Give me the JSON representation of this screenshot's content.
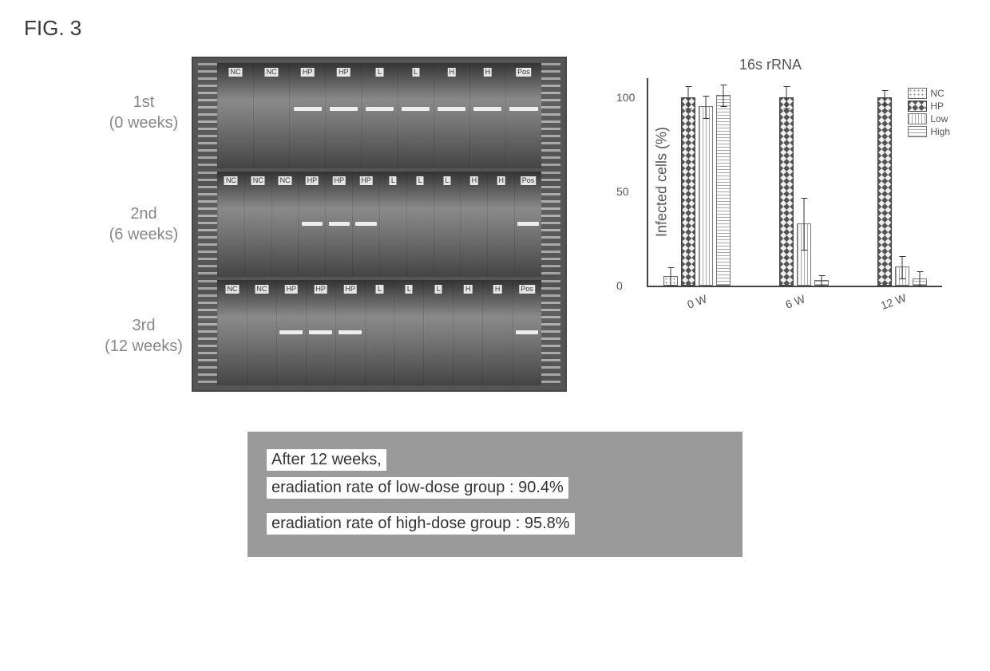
{
  "figure_label": "FIG. 3",
  "gel": {
    "rows": [
      {
        "ordinal": "1st",
        "weeks": "(0 weeks)",
        "lane_tags": [
          "NC",
          "NC",
          "HP",
          "HP",
          "L",
          "L",
          "H",
          "H",
          "Pos"
        ],
        "band_y": 42,
        "bands_on": [
          2,
          3,
          4,
          5,
          6,
          7,
          8
        ]
      },
      {
        "ordinal": "2nd",
        "weeks": "(6 weeks)",
        "lane_tags": [
          "NC",
          "NC",
          "NC",
          "HP",
          "HP",
          "HP",
          "L",
          "L",
          "L",
          "H",
          "H",
          "Pos"
        ],
        "band_y": 48,
        "bands_on": [
          3,
          4,
          5,
          11
        ]
      },
      {
        "ordinal": "3rd",
        "weeks": "(12 weeks)",
        "lane_tags": [
          "NC",
          "NC",
          "HP",
          "HP",
          "HP",
          "L",
          "L",
          "L",
          "H",
          "H",
          "Pos"
        ],
        "band_y": 48,
        "bands_on": [
          2,
          3,
          4,
          10
        ]
      }
    ]
  },
  "chart": {
    "title": "16s  rRNA",
    "ylabel": "Infected cells (%)",
    "ymax": 110,
    "yticks": [
      0,
      50,
      100
    ],
    "ytick_labels": [
      "0",
      "50",
      "100"
    ],
    "categories": [
      "0 W",
      "6 W",
      "12 W"
    ],
    "series": [
      {
        "key": "NC",
        "label": "NC",
        "pattern": "pat-nc"
      },
      {
        "key": "HP",
        "label": "HP",
        "pattern": "pat-hp"
      },
      {
        "key": "Low",
        "label": "Low",
        "pattern": "pat-low"
      },
      {
        "key": "High",
        "label": "High",
        "pattern": "pat-high"
      }
    ],
    "data": {
      "0 W": {
        "NC": {
          "v": 5,
          "e": 5
        },
        "HP": {
          "v": 100,
          "e": 6
        },
        "Low": {
          "v": 95,
          "e": 6
        },
        "High": {
          "v": 101,
          "e": 6
        }
      },
      "6 W": {
        "NC": {
          "v": 0,
          "e": 0
        },
        "HP": {
          "v": 100,
          "e": 6
        },
        "Low": {
          "v": 33,
          "e": 14
        },
        "High": {
          "v": 3,
          "e": 3
        }
      },
      "12 W": {
        "NC": {
          "v": 0,
          "e": 0
        },
        "HP": {
          "v": 100,
          "e": 4
        },
        "Low": {
          "v": 10,
          "e": 6
        },
        "High": {
          "v": 4,
          "e": 4
        }
      }
    }
  },
  "caption": {
    "line1": "After 12 weeks,",
    "line2": "eradiation rate of low-dose group : 90.4%",
    "line3": "eradiation rate of high-dose group : 95.8%"
  }
}
